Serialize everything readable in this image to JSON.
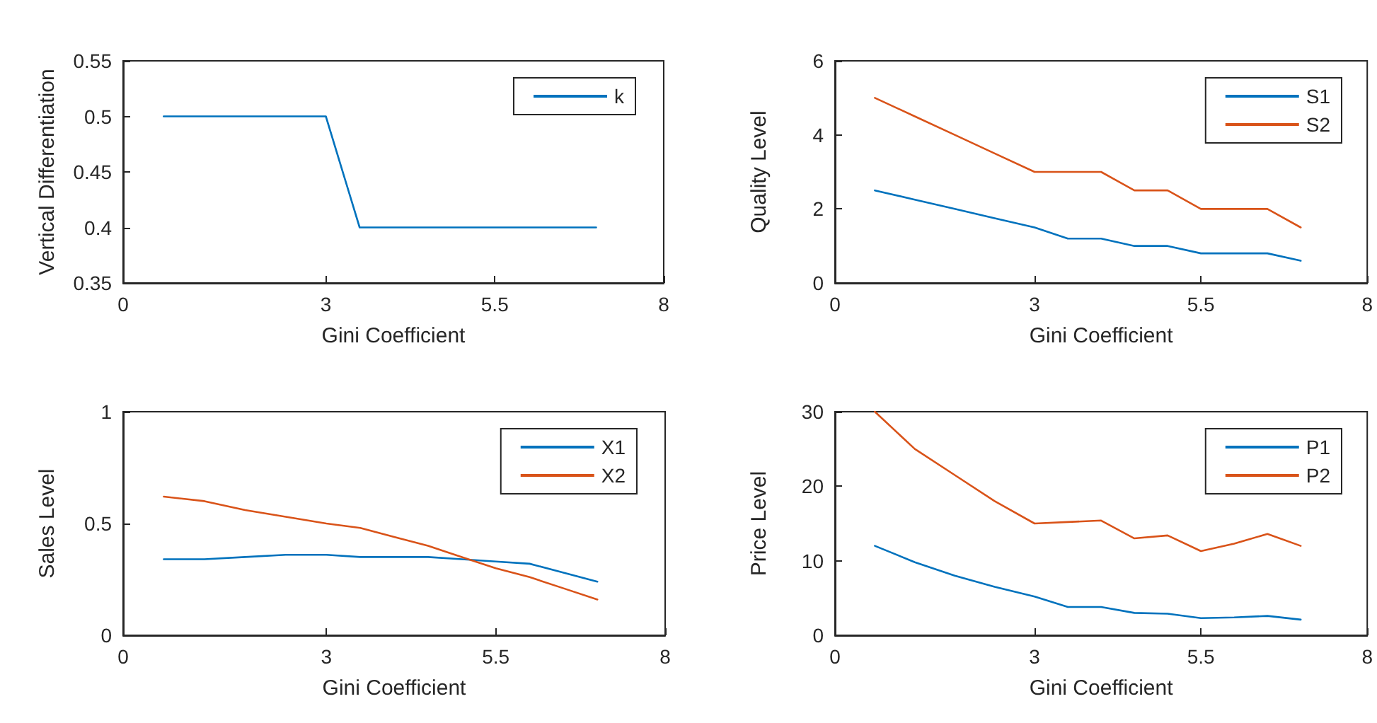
{
  "chart_data": [
    {
      "type": "line",
      "xlabel": "Gini Coefficient",
      "ylabel": "Vertical Differentiation",
      "x": [
        0.6,
        1.2,
        1.8,
        2.4,
        3,
        3.5,
        4,
        4.5,
        5,
        5.5,
        6,
        6.5,
        7
      ],
      "series": [
        {
          "name": "k",
          "color": "#0072bd",
          "values": [
            0.5,
            0.5,
            0.5,
            0.5,
            0.5,
            0.4,
            0.4,
            0.4,
            0.4,
            0.4,
            0.4,
            0.4,
            0.4
          ]
        }
      ],
      "xlim": [
        0,
        8
      ],
      "xticks": [
        0,
        3,
        5.5,
        8
      ],
      "ylim": [
        0.35,
        0.55
      ],
      "yticks": [
        0.35,
        0.4,
        0.45,
        0.5,
        0.55
      ],
      "grid": false,
      "legend": "top right",
      "marker": "none",
      "line_style": "solid"
    },
    {
      "type": "line",
      "xlabel": "Gini Coefficient",
      "ylabel": "Quality Level",
      "x": [
        0.6,
        1.2,
        1.8,
        2.4,
        3,
        3.5,
        4,
        4.5,
        5,
        5.5,
        6,
        6.5,
        7
      ],
      "series": [
        {
          "name": "S1",
          "color": "#0072bd",
          "values": [
            2.5,
            2.25,
            2.0,
            1.75,
            1.5,
            1.2,
            1.2,
            1.0,
            1.0,
            0.8,
            0.8,
            0.8,
            0.6
          ]
        },
        {
          "name": "S2",
          "color": "#d95319",
          "values": [
            5.0,
            4.5,
            4.0,
            3.5,
            3.0,
            3.0,
            3.0,
            2.5,
            2.5,
            2.0,
            2.0,
            2.0,
            1.5
          ]
        }
      ],
      "xlim": [
        0,
        8
      ],
      "xticks": [
        0,
        3,
        5.5,
        8
      ],
      "ylim": [
        0,
        6
      ],
      "yticks": [
        0,
        2,
        4,
        6
      ],
      "grid": false,
      "legend": "top right",
      "marker": "none",
      "line_style": "solid"
    },
    {
      "type": "line",
      "xlabel": "Gini Coefficient",
      "ylabel": "Sales Level",
      "x": [
        0.6,
        1.2,
        1.8,
        2.4,
        3,
        3.5,
        4,
        4.5,
        5,
        5.5,
        6,
        6.5,
        7
      ],
      "series": [
        {
          "name": "X1",
          "color": "#0072bd",
          "values": [
            0.34,
            0.34,
            0.35,
            0.36,
            0.36,
            0.35,
            0.35,
            0.35,
            0.34,
            0.33,
            0.32,
            0.28,
            0.24
          ]
        },
        {
          "name": "X2",
          "color": "#d95319",
          "values": [
            0.62,
            0.6,
            0.56,
            0.53,
            0.5,
            0.48,
            0.44,
            0.4,
            0.35,
            0.3,
            0.26,
            0.21,
            0.16
          ]
        }
      ],
      "xlim": [
        0,
        8
      ],
      "xticks": [
        0,
        3,
        5.5,
        8
      ],
      "ylim": [
        0,
        1
      ],
      "yticks": [
        0,
        0.5,
        1
      ],
      "grid": false,
      "legend": "top right",
      "marker": "none",
      "line_style": "solid"
    },
    {
      "type": "line",
      "xlabel": "Gini Coefficient",
      "ylabel": "Price Level",
      "x": [
        0.6,
        1.2,
        1.8,
        2.4,
        3,
        3.5,
        4,
        4.5,
        5,
        5.5,
        6,
        6.5,
        7
      ],
      "series": [
        {
          "name": "P1",
          "color": "#0072bd",
          "values": [
            12,
            9.8,
            8,
            6.5,
            5.2,
            3.8,
            3.8,
            3,
            2.9,
            2.3,
            2.4,
            2.6,
            2.1
          ]
        },
        {
          "name": "P2",
          "color": "#d95319",
          "values": [
            30,
            25,
            21.5,
            18,
            15,
            15.2,
            15.4,
            13,
            13.4,
            11.3,
            12.3,
            13.6,
            12
          ]
        }
      ],
      "xlim": [
        0,
        8
      ],
      "xticks": [
        0,
        3,
        5.5,
        8
      ],
      "ylim": [
        0,
        30
      ],
      "yticks": [
        0,
        10,
        20,
        30
      ],
      "grid": false,
      "legend": "top right",
      "marker": "none",
      "line_style": "solid"
    }
  ]
}
